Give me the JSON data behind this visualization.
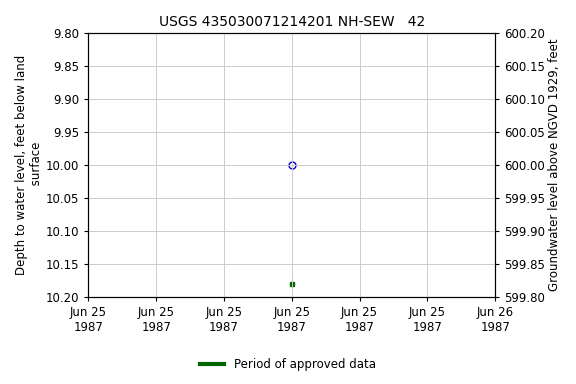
{
  "title": "USGS 435030071214201 NH-SEW   42",
  "ylabel_left": "Depth to water level, feet below land\n surface",
  "ylabel_right": "Groundwater level above NGVD 1929, feet",
  "ylim_left": [
    9.8,
    10.2
  ],
  "ylim_right": [
    599.8,
    600.2
  ],
  "yticks_left": [
    9.8,
    9.85,
    9.9,
    9.95,
    10.0,
    10.05,
    10.1,
    10.15,
    10.2
  ],
  "yticks_right": [
    599.8,
    599.85,
    599.9,
    599.95,
    600.0,
    600.05,
    600.1,
    600.15,
    600.2
  ],
  "data_open_depth": 10.0,
  "data_open_color": "#0000cc",
  "data_filled_depth": 10.18,
  "data_filled_color": "#006600",
  "legend_label": "Period of approved data",
  "legend_color": "#006600",
  "background_color": "#ffffff",
  "grid_color": "#cccccc",
  "tick_fontsize": 8.5,
  "title_fontsize": 10,
  "ylabel_fontsize": 8.5
}
